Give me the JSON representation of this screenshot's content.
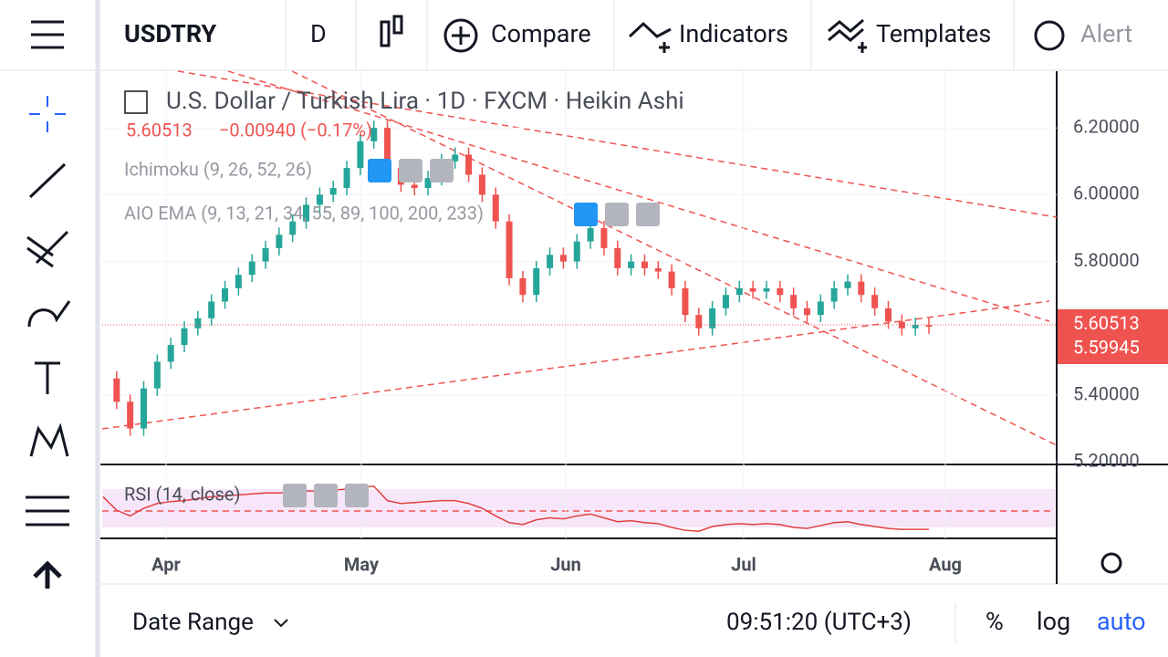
{
  "toolbar": {
    "symbol": "USDTRY",
    "interval": "D",
    "compare": "Compare",
    "indicators": "Indicators",
    "templates": "Templates",
    "alert": "Alert"
  },
  "legend": {
    "name": "U.S. Dollar / Turkish Lira",
    "interval": "1D",
    "exchange": "FXCM",
    "style": "Heikin Ashi",
    "price": "5.60513",
    "change": "−0.00940 (−0.17%)",
    "study1": "Ichimoku (9, 26, 52, 26)",
    "study2": "AIO EMA (9, 13, 21, 34, 55, 89, 100, 200, 233)",
    "study3": "RSI (14, close)"
  },
  "chart_data": {
    "type": "candlestick",
    "up_color": "#26a69a",
    "down_color": "#ef5350",
    "ylim": [
      5.195,
      6.37
    ],
    "yticks": [
      {
        "value": 5.2,
        "label": "5.20000"
      },
      {
        "value": 5.4,
        "label": "5.40000"
      },
      {
        "value": 5.8,
        "label": "5.80000"
      },
      {
        "value": 6.0,
        "label": "6.00000"
      },
      {
        "value": 6.2,
        "label": "6.20000"
      }
    ],
    "price_labels": [
      5.60513,
      5.59945
    ],
    "time_labels": [
      "Apr",
      "May",
      "Jun",
      "Jul",
      "Aug"
    ],
    "closes": [
      5.45,
      5.38,
      5.3,
      5.42,
      5.5,
      5.55,
      5.6,
      5.63,
      5.68,
      5.72,
      5.76,
      5.8,
      5.84,
      5.88,
      5.92,
      5.97,
      6.0,
      6.02,
      6.08,
      6.16,
      6.2,
      6.08,
      6.03,
      6.02,
      6.05,
      6.1,
      6.12,
      6.06,
      6.0,
      5.92,
      5.75,
      5.7,
      5.78,
      5.82,
      5.8,
      5.86,
      5.9,
      5.84,
      5.78,
      5.8,
      5.78,
      5.77,
      5.72,
      5.64,
      5.6,
      5.66,
      5.7,
      5.72,
      5.71,
      5.72,
      5.7,
      5.66,
      5.64,
      5.68,
      5.72,
      5.74,
      5.7,
      5.66,
      5.62,
      5.6,
      5.61,
      5.605
    ],
    "rsi": {
      "ylim": [
        18.6,
        94.8
      ],
      "color": "#e04040",
      "values": [
        62,
        48,
        42,
        50,
        55,
        57,
        58,
        60,
        62,
        63,
        64,
        65,
        66,
        66,
        67,
        68,
        68,
        69,
        70,
        72,
        73,
        58,
        55,
        56,
        57,
        58,
        58,
        55,
        50,
        42,
        35,
        33,
        38,
        40,
        39,
        42,
        44,
        40,
        36,
        37,
        35,
        34,
        30,
        27,
        26,
        31,
        33,
        34,
        33,
        34,
        33,
        30,
        29,
        32,
        35,
        36,
        33,
        31,
        29,
        28,
        28,
        28
      ]
    }
  },
  "footer": {
    "date_range": "Date Range",
    "time": "09:51:20 (UTC+3)",
    "percent": "%",
    "log": "log",
    "auto": "auto"
  }
}
